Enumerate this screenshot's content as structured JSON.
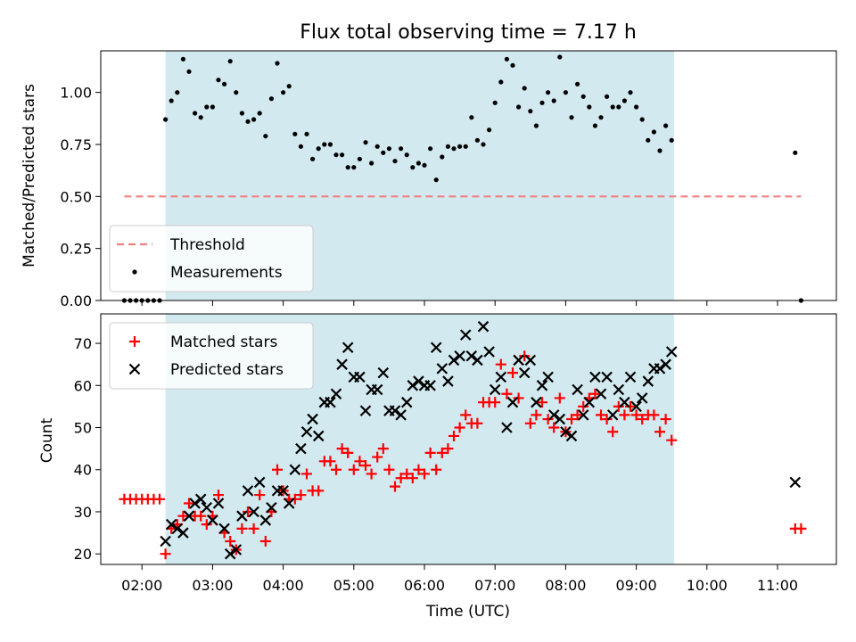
{
  "chart_data": [
    {
      "type": "scatter",
      "title": "Flux total observing time = 7.17 h",
      "xlabel": "",
      "ylabel": "Matched/Predicted stars",
      "xlim": [
        "01:25",
        "11:50"
      ],
      "ylim": [
        0,
        1.2
      ],
      "y_ticks": [
        "0.00",
        "0.25",
        "0.50",
        "0.75",
        "1.00"
      ],
      "shaded_interval": {
        "start": "02:20",
        "end": "09:32",
        "color": "#d2e9f0"
      },
      "legend_position": "lower-left",
      "series": [
        {
          "name": "Threshold",
          "style": "dashed-line",
          "color": "#f08080",
          "x": [
            "01:45",
            "11:20"
          ],
          "y": [
            0.5,
            0.5
          ]
        },
        {
          "name": "Measurements",
          "style": "dots",
          "color": "#000000",
          "x": [
            "01:45",
            "01:50",
            "01:55",
            "02:00",
            "02:05",
            "02:10",
            "02:15",
            "02:20",
            "02:25",
            "02:30",
            "02:35",
            "02:40",
            "02:45",
            "02:50",
            "02:55",
            "03:00",
            "03:05",
            "03:10",
            "03:15",
            "03:20",
            "03:25",
            "03:30",
            "03:35",
            "03:40",
            "03:45",
            "03:50",
            "03:55",
            "04:00",
            "04:05",
            "04:10",
            "04:15",
            "04:20",
            "04:25",
            "04:30",
            "04:35",
            "04:40",
            "04:45",
            "04:50",
            "04:55",
            "05:00",
            "05:05",
            "05:10",
            "05:15",
            "05:20",
            "05:25",
            "05:30",
            "05:35",
            "05:40",
            "05:45",
            "05:50",
            "05:55",
            "06:00",
            "06:05",
            "06:10",
            "06:15",
            "06:20",
            "06:25",
            "06:30",
            "06:35",
            "06:40",
            "06:45",
            "06:50",
            "06:55",
            "07:00",
            "07:05",
            "07:10",
            "07:15",
            "07:20",
            "07:25",
            "07:30",
            "07:35",
            "07:40",
            "07:45",
            "07:50",
            "07:55",
            "08:00",
            "08:05",
            "08:10",
            "08:15",
            "08:20",
            "08:25",
            "08:30",
            "08:35",
            "08:40",
            "08:45",
            "08:50",
            "08:55",
            "09:00",
            "09:05",
            "09:10",
            "09:15",
            "09:20",
            "09:25",
            "09:30",
            "11:15",
            "11:20"
          ],
          "y": [
            0,
            0,
            0,
            0,
            0,
            0,
            0,
            0.87,
            0.96,
            1.0,
            1.16,
            1.1,
            0.9,
            0.88,
            0.93,
            0.93,
            1.06,
            1.04,
            1.15,
            1.0,
            0.9,
            0.86,
            0.87,
            0.9,
            0.79,
            0.97,
            1.14,
            1.0,
            1.03,
            0.8,
            0.74,
            0.8,
            0.68,
            0.73,
            0.75,
            0.75,
            0.7,
            0.7,
            0.64,
            0.64,
            0.68,
            0.76,
            0.66,
            0.74,
            0.71,
            0.73,
            0.67,
            0.73,
            0.7,
            0.64,
            0.66,
            0.65,
            0.73,
            0.58,
            0.69,
            0.74,
            0.73,
            0.74,
            0.74,
            0.88,
            0.77,
            0.75,
            0.82,
            0.95,
            1.05,
            1.16,
            1.13,
            0.93,
            1.02,
            0.91,
            0.84,
            0.95,
            1.0,
            0.96,
            1.17,
            1.0,
            0.88,
            1.04,
            0.98,
            0.93,
            0.84,
            0.88,
            0.98,
            0.93,
            0.93,
            0.96,
            1.0,
            0.93,
            0.87,
            0.77,
            0.81,
            0.72,
            0.84,
            0.77,
            0.71,
            0
          ]
        }
      ]
    },
    {
      "type": "scatter",
      "title": "",
      "xlabel": "Time (UTC)",
      "ylabel": "Count",
      "xlim": [
        "01:25",
        "11:50"
      ],
      "ylim": [
        17.5,
        77
      ],
      "y_ticks": [
        "20",
        "30",
        "40",
        "50",
        "60",
        "70"
      ],
      "x_ticks": [
        "02:00",
        "03:00",
        "04:00",
        "05:00",
        "06:00",
        "07:00",
        "08:00",
        "09:00",
        "10:00",
        "11:00"
      ],
      "shaded_interval": {
        "start": "02:20",
        "end": "09:32",
        "color": "#d2e9f0"
      },
      "legend_position": "upper-left",
      "series": [
        {
          "name": "Matched stars",
          "style": "plus",
          "color": "#ff0000",
          "x": [
            "01:45",
            "01:50",
            "01:55",
            "02:00",
            "02:05",
            "02:10",
            "02:15",
            "02:20",
            "02:25",
            "02:30",
            "02:35",
            "02:40",
            "02:45",
            "02:50",
            "02:55",
            "03:00",
            "03:05",
            "03:10",
            "03:15",
            "03:20",
            "03:25",
            "03:30",
            "03:35",
            "03:40",
            "03:45",
            "03:50",
            "03:55",
            "04:00",
            "04:05",
            "04:10",
            "04:15",
            "04:20",
            "04:25",
            "04:30",
            "04:35",
            "04:40",
            "04:45",
            "04:50",
            "04:55",
            "05:00",
            "05:05",
            "05:10",
            "05:15",
            "05:20",
            "05:25",
            "05:30",
            "05:35",
            "05:40",
            "05:45",
            "05:50",
            "05:55",
            "06:00",
            "06:05",
            "06:10",
            "06:15",
            "06:20",
            "06:25",
            "06:30",
            "06:35",
            "06:40",
            "06:45",
            "06:50",
            "06:55",
            "07:00",
            "07:05",
            "07:10",
            "07:15",
            "07:20",
            "07:25",
            "07:30",
            "07:35",
            "07:40",
            "07:45",
            "07:50",
            "07:55",
            "08:00",
            "08:05",
            "08:10",
            "08:15",
            "08:20",
            "08:25",
            "08:30",
            "08:35",
            "08:40",
            "08:45",
            "08:50",
            "08:55",
            "09:00",
            "09:05",
            "09:10",
            "09:15",
            "09:20",
            "09:25",
            "09:30",
            "11:15",
            "11:20"
          ],
          "y": [
            33,
            33,
            33,
            33,
            33,
            33,
            33,
            20,
            26,
            27,
            29,
            32,
            29,
            29,
            27,
            29,
            34,
            25,
            23,
            21,
            26,
            30,
            26,
            34,
            23,
            30,
            40,
            35,
            33,
            33,
            34,
            39,
            35,
            35,
            42,
            42,
            40,
            45,
            44,
            40,
            42,
            41,
            39,
            43,
            45,
            40,
            36,
            38,
            39,
            38,
            40,
            39,
            44,
            40,
            44,
            45,
            48,
            50,
            53,
            51,
            51,
            56,
            56,
            56,
            65,
            58,
            63,
            57,
            67,
            51,
            53,
            56,
            52,
            50,
            57,
            49,
            52,
            53,
            55,
            57,
            58,
            53,
            52,
            49,
            55,
            53,
            55,
            53,
            52,
            53,
            53,
            49,
            52,
            47,
            26,
            26
          ]
        },
        {
          "name": "Predicted stars",
          "style": "x",
          "color": "#000000",
          "x": [
            "02:20",
            "02:25",
            "02:30",
            "02:35",
            "02:40",
            "02:45",
            "02:50",
            "02:55",
            "03:00",
            "03:05",
            "03:10",
            "03:15",
            "03:20",
            "03:25",
            "03:30",
            "03:35",
            "03:40",
            "03:45",
            "03:50",
            "03:55",
            "04:00",
            "04:05",
            "04:10",
            "04:15",
            "04:20",
            "04:25",
            "04:30",
            "04:35",
            "04:40",
            "04:45",
            "04:50",
            "04:55",
            "05:00",
            "05:05",
            "05:10",
            "05:15",
            "05:20",
            "05:25",
            "05:30",
            "05:35",
            "05:40",
            "05:45",
            "05:50",
            "05:55",
            "06:00",
            "06:05",
            "06:10",
            "06:15",
            "06:20",
            "06:25",
            "06:30",
            "06:35",
            "06:40",
            "06:45",
            "06:50",
            "06:55",
            "07:00",
            "07:05",
            "07:10",
            "07:15",
            "07:20",
            "07:25",
            "07:30",
            "07:35",
            "07:40",
            "07:45",
            "07:50",
            "07:55",
            "08:00",
            "08:05",
            "08:10",
            "08:15",
            "08:20",
            "08:25",
            "08:30",
            "08:35",
            "08:40",
            "08:45",
            "08:50",
            "08:55",
            "09:00",
            "09:05",
            "09:10",
            "09:15",
            "09:20",
            "09:25",
            "09:30",
            "11:15"
          ],
          "y": [
            23,
            27,
            26,
            25,
            29,
            32,
            33,
            31,
            28,
            32,
            26,
            20,
            21,
            29,
            35,
            30,
            37,
            28,
            31,
            35,
            35,
            32,
            40,
            45,
            49,
            52,
            48,
            56,
            56,
            58,
            65,
            69,
            62,
            62,
            54,
            59,
            59,
            63,
            54,
            54,
            53,
            56,
            60,
            61,
            60,
            60,
            69,
            64,
            61,
            66,
            67,
            72,
            67,
            66,
            74,
            68,
            59,
            62,
            50,
            56,
            66,
            63,
            66,
            56,
            60,
            62,
            53,
            52,
            49,
            48,
            59,
            53,
            56,
            62,
            58,
            62,
            53,
            59,
            56,
            62,
            55,
            57,
            61,
            64,
            64,
            65,
            68,
            37
          ]
        }
      ]
    }
  ]
}
